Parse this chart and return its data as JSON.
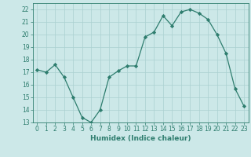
{
  "x": [
    0,
    1,
    2,
    3,
    4,
    5,
    6,
    7,
    8,
    9,
    10,
    11,
    12,
    13,
    14,
    15,
    16,
    17,
    18,
    19,
    20,
    21,
    22,
    23
  ],
  "y": [
    17.2,
    17.0,
    17.6,
    16.6,
    15.0,
    13.4,
    13.0,
    14.0,
    16.6,
    17.1,
    17.5,
    17.5,
    19.8,
    20.2,
    21.5,
    20.7,
    21.8,
    22.0,
    21.7,
    21.2,
    20.0,
    18.5,
    15.7,
    14.3
  ],
  "xlabel": "Humidex (Indice chaleur)",
  "line_color": "#2e7d6e",
  "marker_color": "#2e7d6e",
  "bg_color": "#cce8e8",
  "grid_color": "#aad0d0",
  "axis_color": "#2e7d6e",
  "tick_color": "#2e7d6e",
  "xlim": [
    -0.5,
    23.5
  ],
  "ylim": [
    13,
    22.5
  ],
  "yticks": [
    13,
    14,
    15,
    16,
    17,
    18,
    19,
    20,
    21,
    22
  ],
  "xticks": [
    0,
    1,
    2,
    3,
    4,
    5,
    6,
    7,
    8,
    9,
    10,
    11,
    12,
    13,
    14,
    15,
    16,
    17,
    18,
    19,
    20,
    21,
    22,
    23
  ],
  "tick_fontsize": 5.5,
  "xlabel_fontsize": 6.5
}
